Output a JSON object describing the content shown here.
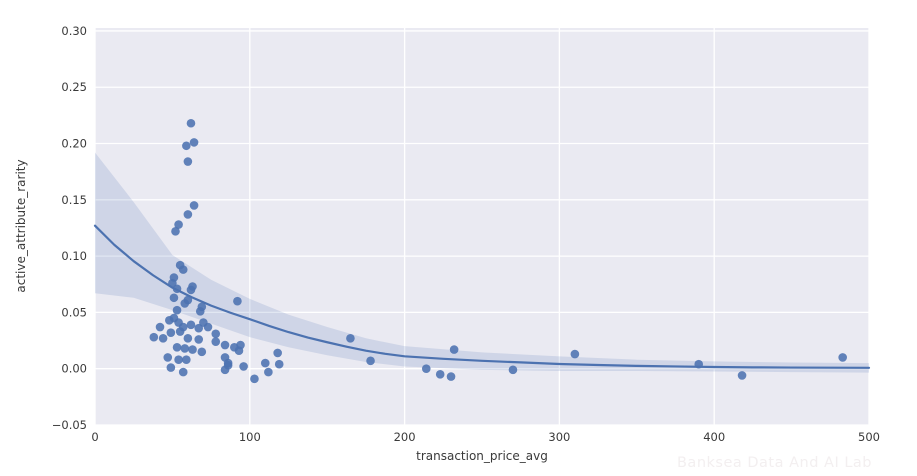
{
  "figure": {
    "watermark": "Banksea Data And AI Lab"
  },
  "chart_data": {
    "type": "scatter",
    "title": "",
    "xlabel": "transaction_price_avg",
    "ylabel": "active_attribute_rarity",
    "xlim": [
      0,
      500
    ],
    "ylim": [
      -0.05,
      0.3026
    ],
    "xticks": [
      0,
      100,
      200,
      300,
      400,
      500
    ],
    "xtick_labels": [
      "0",
      "100",
      "200",
      "300",
      "400",
      "500"
    ],
    "yticks": [
      -0.05,
      0.0,
      0.05,
      0.1,
      0.15,
      0.2,
      0.25,
      0.3
    ],
    "ytick_labels": [
      "−0.05",
      "0.00",
      "0.05",
      "0.10",
      "0.15",
      "0.20",
      "0.25",
      "0.30"
    ],
    "grid": true,
    "legend": false,
    "background_color": "#eaeaf2",
    "grid_color": "#ffffff",
    "point_color": "#4c72b0",
    "point_radius": 4.3,
    "line_color": "#4c72b0",
    "band_color": "rgba(76,114,176,0.17)",
    "points": [
      [
        62,
        0.218
      ],
      [
        64,
        0.201
      ],
      [
        59,
        0.198
      ],
      [
        60,
        0.184
      ],
      [
        64,
        0.145
      ],
      [
        60,
        0.137
      ],
      [
        54,
        0.128
      ],
      [
        52,
        0.122
      ],
      [
        55,
        0.092
      ],
      [
        57,
        0.088
      ],
      [
        51,
        0.081
      ],
      [
        50,
        0.076
      ],
      [
        63,
        0.073
      ],
      [
        53,
        0.071
      ],
      [
        62,
        0.07
      ],
      [
        51,
        0.063
      ],
      [
        60,
        0.061
      ],
      [
        92,
        0.06
      ],
      [
        58,
        0.058
      ],
      [
        69,
        0.055
      ],
      [
        53,
        0.052
      ],
      [
        68,
        0.051
      ],
      [
        51,
        0.045
      ],
      [
        48,
        0.043
      ],
      [
        54,
        0.041
      ],
      [
        70,
        0.041
      ],
      [
        62,
        0.039
      ],
      [
        42,
        0.037
      ],
      [
        57,
        0.037
      ],
      [
        73,
        0.037
      ],
      [
        67,
        0.036
      ],
      [
        55,
        0.033
      ],
      [
        49,
        0.032
      ],
      [
        78,
        0.031
      ],
      [
        38,
        0.028
      ],
      [
        44,
        0.027
      ],
      [
        60,
        0.027
      ],
      [
        165,
        0.027
      ],
      [
        67,
        0.026
      ],
      [
        78,
        0.024
      ],
      [
        84,
        0.021
      ],
      [
        94,
        0.021
      ],
      [
        53,
        0.019
      ],
      [
        90,
        0.019
      ],
      [
        58,
        0.018
      ],
      [
        63,
        0.017
      ],
      [
        232,
        0.017
      ],
      [
        93,
        0.016
      ],
      [
        69,
        0.015
      ],
      [
        118,
        0.014
      ],
      [
        310,
        0.013
      ],
      [
        47,
        0.01
      ],
      [
        84,
        0.01
      ],
      [
        483,
        0.01
      ],
      [
        54,
        0.008
      ],
      [
        59,
        0.008
      ],
      [
        178,
        0.007
      ],
      [
        86,
        0.005
      ],
      [
        110,
        0.005
      ],
      [
        119,
        0.004
      ],
      [
        390,
        0.004
      ],
      [
        86,
        0.003
      ],
      [
        96,
        0.002
      ],
      [
        49,
        0.001
      ],
      [
        214,
        0.0
      ],
      [
        84,
        -0.001
      ],
      [
        270,
        -0.001
      ],
      [
        57,
        -0.003
      ],
      [
        112,
        -0.003
      ],
      [
        223,
        -0.005
      ],
      [
        418,
        -0.006
      ],
      [
        230,
        -0.007
      ],
      [
        103,
        -0.009
      ]
    ],
    "regression_line": {
      "x": [
        0,
        12.5,
        25,
        37.5,
        50,
        62.5,
        75,
        87.5,
        100,
        112.5,
        125,
        137.5,
        150,
        162.5,
        175,
        187.5,
        200,
        225,
        250,
        275,
        300,
        325,
        350,
        375,
        400,
        425,
        450,
        475,
        500
      ],
      "y": [
        0.127,
        0.11,
        0.0955,
        0.083,
        0.072,
        0.0635,
        0.056,
        0.0497,
        0.044,
        0.038,
        0.0325,
        0.0277,
        0.0235,
        0.0196,
        0.016,
        0.0132,
        0.011,
        0.0088,
        0.007,
        0.0056,
        0.0042,
        0.0033,
        0.0025,
        0.002,
        0.0015,
        0.0012,
        0.001,
        0.0009,
        0.0008
      ]
    },
    "confidence_band": {
      "x": [
        0,
        25,
        50,
        75,
        100,
        125,
        150,
        175,
        200,
        250,
        300,
        350,
        400,
        450,
        500
      ],
      "upper": [
        0.192,
        0.148,
        0.101,
        0.079,
        0.062,
        0.048,
        0.037,
        0.027,
        0.02,
        0.0145,
        0.011,
        0.008,
        0.0065,
        0.0055,
        0.005
      ],
      "lower": [
        0.067,
        0.063,
        0.052,
        0.04,
        0.028,
        0.019,
        0.012,
        0.006,
        0.002,
        -0.001,
        -0.002,
        -0.002,
        -0.0025,
        -0.003,
        -0.0035
      ]
    }
  }
}
